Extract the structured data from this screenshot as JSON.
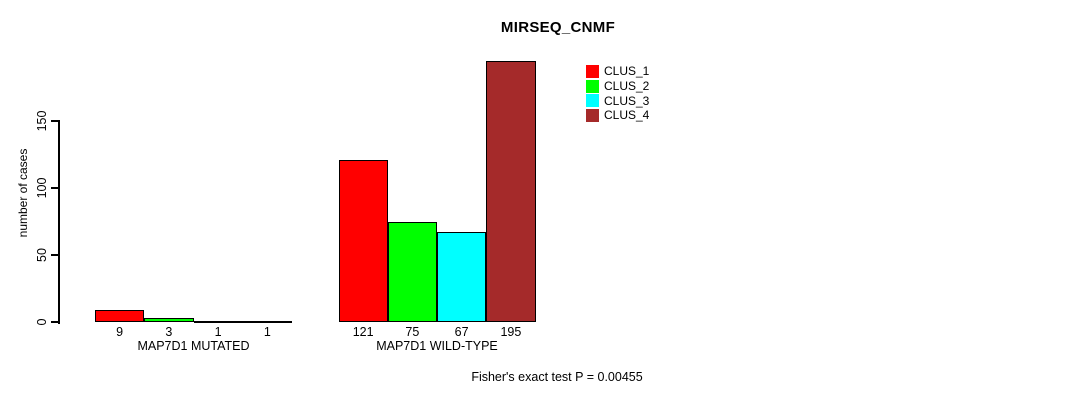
{
  "chart_data": {
    "type": "bar",
    "title": "MIRSEQ_CNMF",
    "ylabel": "number of cases",
    "xlabel": "",
    "yticks": [
      0,
      50,
      100,
      150
    ],
    "ylim": [
      0,
      195
    ],
    "grid": false,
    "legend_position": "top-right",
    "bar_value_labels": true,
    "categories": [
      "MAP7D1 MUTATED",
      "MAP7D1 WILD-TYPE"
    ],
    "series": [
      {
        "name": "CLUS_1",
        "color": "#FF0000",
        "values": [
          9,
          121
        ]
      },
      {
        "name": "CLUS_2",
        "color": "#00FF00",
        "values": [
          3,
          75
        ]
      },
      {
        "name": "CLUS_3",
        "color": "#00FFFF",
        "values": [
          1,
          67
        ]
      },
      {
        "name": "CLUS_4",
        "color": "#A52A2A",
        "values": [
          1,
          195
        ]
      }
    ],
    "footnote": "Fisher's exact test P = 0.00455"
  }
}
